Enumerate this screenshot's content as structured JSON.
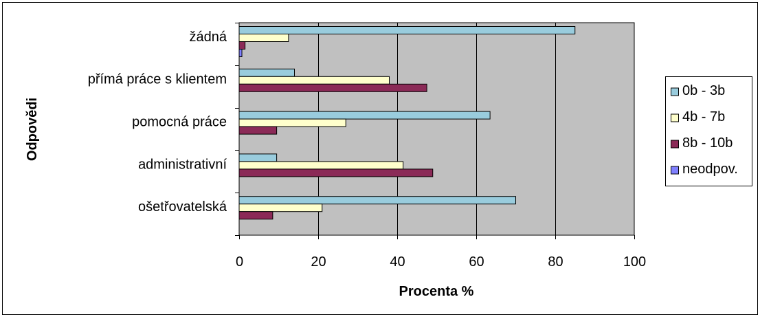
{
  "chart_data": {
    "type": "bar",
    "orientation": "horizontal",
    "categories": [
      "ošetřovatelská",
      "administrativní",
      "pomocná práce",
      "přímá práce s klientem",
      "žádná"
    ],
    "series": [
      {
        "name": "0b - 3b",
        "color": "#99ccdd",
        "values": [
          70,
          9.5,
          63.5,
          14,
          85
        ]
      },
      {
        "name": "4b - 7b",
        "color": "#ffffcc",
        "values": [
          21,
          41.5,
          27,
          38,
          12.5
        ]
      },
      {
        "name": "8b - 10b",
        "color": "#8b2a57",
        "values": [
          8.5,
          49,
          9.5,
          47.5,
          1.5
        ]
      },
      {
        "name": "neodpov.",
        "color": "#8080ff",
        "values": [
          0,
          0,
          0,
          0,
          0.7
        ]
      }
    ],
    "xlim": [
      0,
      100
    ],
    "xticks": [
      "0",
      "20",
      "40",
      "60",
      "80",
      "100"
    ],
    "xlabel": "Procenta %",
    "ylabel": "Odpovědi",
    "plot_background": "#c0c0c0",
    "grid": "vertical major gridlines",
    "legend_position": "right"
  }
}
